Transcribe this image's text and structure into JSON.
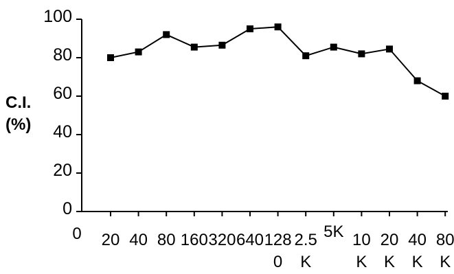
{
  "chart_data": {
    "type": "line",
    "ylabel": [
      "C.I.",
      "(%)"
    ],
    "xlabel": "",
    "title": "",
    "ylim": [
      0,
      100
    ],
    "yticks": [
      0,
      20,
      40,
      60,
      80,
      100
    ],
    "origin_label": "0",
    "categories": [
      [
        "20"
      ],
      [
        "40"
      ],
      [
        "80"
      ],
      [
        "160"
      ],
      [
        "320"
      ],
      [
        "640"
      ],
      [
        "128",
        "0"
      ],
      [
        "2.5",
        "K"
      ],
      [
        "5K"
      ],
      [
        "10",
        "K"
      ],
      [
        "20",
        "K"
      ],
      [
        "40",
        "K"
      ],
      [
        "80",
        "K"
      ]
    ],
    "series": [
      {
        "values": [
          80,
          83,
          92,
          85.5,
          86.5,
          95,
          96,
          81,
          85.5,
          82,
          84.5,
          68,
          60
        ]
      }
    ],
    "grid": false,
    "legend": "none",
    "colors": {
      "line": "#000000",
      "marker": "#000000",
      "axis": "#000000"
    }
  }
}
